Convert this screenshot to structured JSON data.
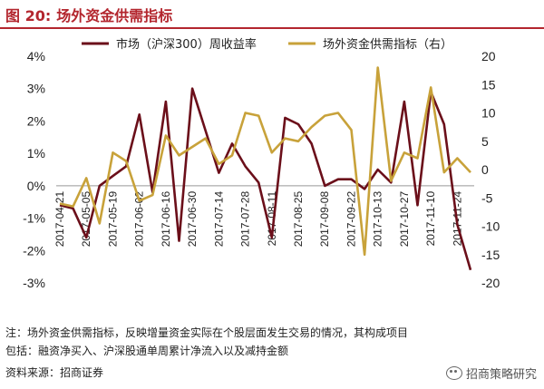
{
  "header": {
    "fig_label": "图 20:",
    "title": "场外资金供需指标"
  },
  "footer": {
    "note_line1": "注：场外资金供需指标，反映增量资金实际在个股层面发生交易的情况，其构成项目",
    "note_line2": "包括：融资净买入、沪深股通单周累计净流入以及减持金额",
    "source": "资料来源：招商证券",
    "watermark": "招商策略研究"
  },
  "colors": {
    "series1": "#6b0f1a",
    "series2": "#c8a23a",
    "accent": "#b3262e"
  },
  "chart_data": {
    "type": "line",
    "title": "",
    "x_tick_labels": [
      "2017-04-21",
      "2017-05-05",
      "2017-05-19",
      "2017-06-02",
      "2017-06-16",
      "2017-06-30",
      "2017-07-14",
      "2017-07-28",
      "2017-08-11",
      "2017-08-25",
      "2017-09-08",
      "2017-09-22",
      "2017-10-13",
      "2017-10-27",
      "2017-11-10",
      "2017-11-24"
    ],
    "x": [
      "2017-04-21",
      "2017-04-28",
      "2017-05-05",
      "2017-05-12",
      "2017-05-19",
      "2017-05-26",
      "2017-06-02",
      "2017-06-09",
      "2017-06-16",
      "2017-06-23",
      "2017-06-30",
      "2017-07-07",
      "2017-07-14",
      "2017-07-21",
      "2017-07-28",
      "2017-08-04",
      "2017-08-11",
      "2017-08-18",
      "2017-08-25",
      "2017-09-01",
      "2017-09-08",
      "2017-09-15",
      "2017-09-22",
      "2017-09-29",
      "2017-10-13",
      "2017-10-20",
      "2017-10-27",
      "2017-11-03",
      "2017-11-10",
      "2017-11-17",
      "2017-11-24",
      "2017-12-01"
    ],
    "y_left": {
      "min": -3,
      "max": 4,
      "step": 1,
      "ticks": [
        "-3%",
        "-2%",
        "-1%",
        "0%",
        "1%",
        "2%",
        "3%",
        "4%"
      ]
    },
    "y_right": {
      "min": -20,
      "max": 20,
      "step": 5,
      "ticks": [
        "-20",
        "-15",
        "-10",
        "-5",
        "0",
        "5",
        "10",
        "15",
        "20"
      ]
    },
    "legend_position": "top",
    "series": [
      {
        "name": "市场（沪深300）周收益率",
        "axis": "left",
        "values": [
          -0.6,
          -0.7,
          -1.6,
          0.0,
          0.3,
          0.6,
          2.2,
          -0.2,
          2.6,
          -1.7,
          3.0,
          1.7,
          0.4,
          1.3,
          0.6,
          0.1,
          -1.6,
          2.1,
          1.9,
          1.3,
          0.0,
          0.2,
          0.2,
          -0.1,
          0.5,
          0.1,
          2.6,
          -0.6,
          2.9,
          1.9,
          -1.2,
          -2.6
        ]
      },
      {
        "name": "场外资金供需指标（右）",
        "axis": "right",
        "values": [
          -6.0,
          -6.5,
          -1.5,
          -9.5,
          3.0,
          1.5,
          -5.5,
          -4.5,
          6.0,
          2.5,
          4.0,
          5.5,
          1.0,
          2.5,
          10.0,
          9.5,
          3.0,
          5.5,
          5.0,
          7.5,
          9.5,
          10.0,
          7.0,
          -15.0,
          18.0,
          -2.0,
          3.0,
          2.0,
          14.5,
          -0.5,
          2.0,
          -0.5
        ]
      }
    ]
  }
}
